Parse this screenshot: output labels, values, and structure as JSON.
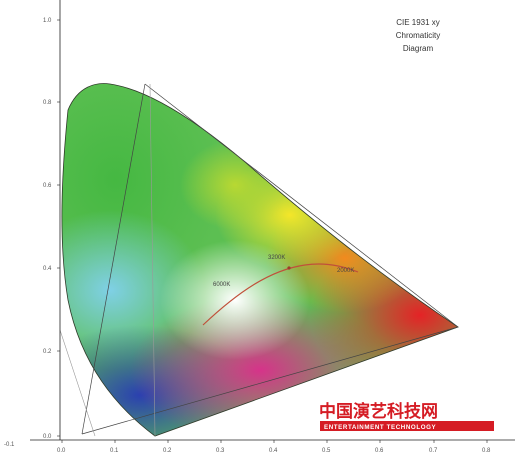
{
  "diagram": {
    "title_lines": [
      "CIE 1931 xy",
      "Chromaticity",
      "Diagram"
    ],
    "y_ticks": [
      "1.0",
      "0.8",
      "0.6",
      "0.4",
      "0.2",
      "0.0"
    ],
    "x_ticks": [
      "0.0",
      "0.1",
      "0.2",
      "0.3",
      "0.4",
      "0.5",
      "0.6",
      "0.7",
      "0.8"
    ],
    "axis_corner_label": "-0.1",
    "cct_labels": {
      "high": "6000K",
      "mid": "3200K",
      "low": "2000K"
    },
    "colors": {
      "axis": "#222222",
      "gamut_line": "#444444",
      "locus_line": "#c0503a",
      "red": "#e42326",
      "green": "#4fc04a",
      "blue": "#1c2c86"
    }
  },
  "watermark": {
    "name_cn": "中国演艺科技网",
    "name_en": "ENTERTAINMENT TECHNOLOGY",
    "brand_color": "#d51c24"
  }
}
